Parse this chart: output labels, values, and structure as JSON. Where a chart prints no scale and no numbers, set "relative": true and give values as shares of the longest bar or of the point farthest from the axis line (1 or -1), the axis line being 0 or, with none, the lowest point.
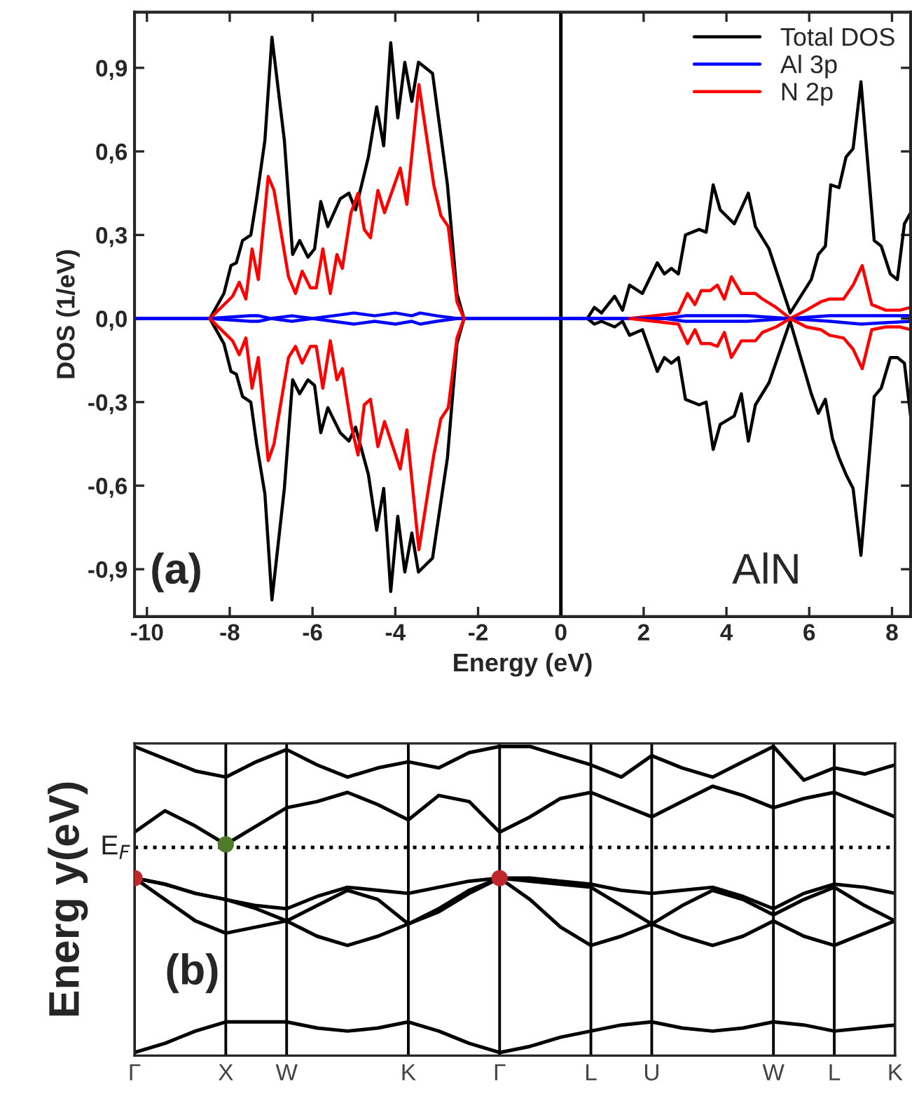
{
  "chart_data": [
    {
      "type": "line",
      "xlabel": "Energy (eV)",
      "ylabel": "DOS (1/eV)",
      "xlim": [
        -10.3,
        8.45
      ],
      "ylim": [
        -1.07,
        1.1
      ],
      "xticks": [
        -10,
        -8,
        -6,
        -4,
        -2,
        0,
        2,
        4,
        6,
        8
      ],
      "yticks": [
        {
          "value": -0.9,
          "label": "-0,9"
        },
        {
          "value": -0.6,
          "label": "-0,6"
        },
        {
          "value": -0.3,
          "label": "-0,3"
        },
        {
          "value": 0,
          "label": "0,0"
        },
        {
          "value": 0.3,
          "label": "0,3"
        },
        {
          "value": 0.6,
          "label": "0,6"
        },
        {
          "value": 0.9,
          "label": "0,9"
        }
      ],
      "legend": "top right",
      "annotations": [
        "(a)",
        "AlN"
      ],
      "ref_lines": [
        {
          "axis": "x",
          "value": 0,
          "color": "#000000",
          "line_style": "solid"
        }
      ],
      "series": [
        {
          "name": "Total DOS",
          "color": "#000000",
          "x": [
            -8.48,
            -8.14,
            -7.97,
            -7.84,
            -7.69,
            -7.49,
            -7.35,
            -7.15,
            -6.98,
            -6.68,
            -6.48,
            -6.31,
            -6.11,
            -5.95,
            -5.8,
            -5.63,
            -5.33,
            -5.12,
            -4.96,
            -4.65,
            -4.45,
            -4.28,
            -4.11,
            -3.94,
            -3.77,
            -3.6,
            -3.44,
            -3.1,
            -2.74,
            -2.51,
            -2.34,
            -1.0,
            0.3,
            0.64,
            0.81,
            0.98,
            1.3,
            1.49,
            1.66,
            1.97,
            2.33,
            2.5,
            2.67,
            2.84,
            3.01,
            3.34,
            3.51,
            3.68,
            3.85,
            4.19,
            4.53,
            4.7,
            5.03,
            5.54,
            6.05,
            6.22,
            6.39,
            6.52,
            6.72,
            6.89,
            7.06,
            7.25,
            7.57,
            7.74,
            7.96,
            8.13,
            8.3,
            8.45
          ],
          "values": [
            0,
            0.09,
            0.19,
            0.2,
            0.28,
            0.3,
            0.43,
            0.64,
            1.01,
            0.64,
            0.23,
            0.28,
            0.22,
            0.25,
            0.42,
            0.33,
            0.43,
            0.45,
            0.39,
            0.58,
            0.76,
            0.62,
            0.99,
            0.72,
            0.92,
            0.78,
            0.92,
            0.88,
            0.48,
            0.09,
            0,
            null,
            0,
            0,
            0.04,
            0.02,
            0.08,
            0.03,
            0.12,
            0.09,
            0.2,
            0.16,
            0.18,
            0.16,
            0.3,
            0.32,
            0.31,
            0.48,
            0.39,
            0.34,
            0.45,
            0.33,
            0.25,
            0.02,
            0.14,
            0.23,
            0.26,
            0.48,
            0.47,
            0.58,
            0.61,
            0.85,
            0.28,
            0.26,
            0.16,
            0.14,
            0.34,
            0.38
          ]
        },
        {
          "name": "Al 3p",
          "color": "#0000ff",
          "x": [
            -10.3,
            -8.5,
            -7.5,
            -7.3,
            -7.0,
            -6.5,
            -6.0,
            -5.5,
            -5.0,
            -4.5,
            -4.0,
            -3.6,
            -3.4,
            -3.0,
            -2.5,
            0,
            2.5,
            3.0,
            3.8,
            4.5,
            5.5,
            6.5,
            7.25,
            8.45
          ],
          "values": [
            0,
            0,
            0.01,
            0.01,
            0,
            0.01,
            0,
            0.01,
            0.02,
            0.01,
            0.02,
            0.01,
            0.02,
            0.01,
            0,
            0,
            0,
            0.01,
            0.01,
            0.01,
            0,
            0.01,
            0.01,
            0.01
          ]
        },
        {
          "name": "N 2p",
          "color": "#ff0000",
          "x": [
            -8.48,
            -7.93,
            -7.77,
            -7.61,
            -7.46,
            -7.31,
            -7.07,
            -6.93,
            -6.58,
            -6.41,
            -6.25,
            -6.05,
            -5.91,
            -5.75,
            -5.57,
            -5.41,
            -5.28,
            -5.07,
            -4.9,
            -4.75,
            -4.6,
            -4.42,
            -4.26,
            -3.88,
            -3.72,
            -3.43,
            -3.07,
            -2.9,
            -2.72,
            -2.51,
            -2.34,
            -1.0,
            1.66,
            2.84,
            3.06,
            3.24,
            3.39,
            3.61,
            3.78,
            3.95,
            4.12,
            4.36,
            4.7,
            4.87,
            5.2,
            5.54,
            5.93,
            6.28,
            6.49,
            6.83,
            7.06,
            7.28,
            7.51,
            7.85,
            8.19,
            8.45
          ],
          "values": [
            0,
            0.08,
            0.13,
            0.07,
            0.25,
            0.14,
            0.51,
            0.46,
            0.15,
            0.09,
            0.17,
            0.11,
            0.11,
            0.25,
            0.09,
            0.23,
            0.18,
            0.38,
            0.45,
            0.32,
            0.29,
            0.46,
            0.38,
            0.54,
            0.41,
            0.84,
            0.48,
            0.37,
            0.33,
            0.06,
            0,
            null,
            0,
            0.02,
            0.09,
            0.05,
            0.1,
            0.1,
            0.12,
            0.07,
            0.15,
            0.09,
            0.09,
            0.07,
            0.04,
            0,
            0.03,
            0.06,
            0.07,
            0.07,
            0.12,
            0.19,
            0.05,
            0.03,
            0.03,
            0.04
          ]
        },
        {
          "color": "#000000",
          "x": [
            -8.48,
            -8.14,
            -7.97,
            -7.84,
            -7.69,
            -7.49,
            -7.35,
            -7.15,
            -6.98,
            -6.68,
            -6.48,
            -6.31,
            -6.11,
            -5.95,
            -5.8,
            -5.63,
            -5.33,
            -5.12,
            -4.96,
            -4.65,
            -4.45,
            -4.28,
            -4.11,
            -3.94,
            -3.77,
            -3.6,
            -3.44,
            -3.1,
            -2.74,
            -2.51,
            -2.34,
            -1.0,
            0.64,
            0.81,
            0.98,
            1.3,
            1.49,
            1.66,
            1.97,
            2.33,
            2.5,
            2.67,
            2.84,
            3.01,
            3.34,
            3.51,
            3.68,
            3.85,
            4.19,
            4.36,
            4.53,
            4.7,
            5.03,
            5.54,
            6.05,
            6.22,
            6.39,
            6.56,
            6.72,
            6.89,
            7.06,
            7.25,
            7.57,
            7.74,
            7.96,
            8.13,
            8.3,
            8.45
          ],
          "values": [
            0,
            -0.09,
            -0.19,
            -0.2,
            -0.28,
            -0.3,
            -0.45,
            -0.63,
            -1.01,
            -0.61,
            -0.22,
            -0.27,
            -0.22,
            -0.24,
            -0.41,
            -0.32,
            -0.41,
            -0.44,
            -0.39,
            -0.56,
            -0.76,
            -0.61,
            -0.98,
            -0.71,
            -0.91,
            -0.77,
            -0.91,
            -0.86,
            -0.5,
            -0.09,
            0,
            null,
            0,
            -0.02,
            -0.01,
            -0.03,
            -0.01,
            -0.06,
            -0.04,
            -0.19,
            -0.14,
            -0.16,
            -0.14,
            -0.29,
            -0.31,
            -0.3,
            -0.47,
            -0.38,
            -0.35,
            -0.27,
            -0.44,
            -0.31,
            -0.23,
            -0.01,
            -0.27,
            -0.34,
            -0.29,
            -0.43,
            -0.5,
            -0.56,
            -0.61,
            -0.85,
            -0.28,
            -0.25,
            -0.14,
            -0.14,
            -0.16,
            -0.35
          ]
        },
        {
          "color": "#0000ff",
          "x": [
            -10.3,
            -8.5,
            -7.5,
            -7.3,
            -7.0,
            -6.5,
            -6.0,
            -5.5,
            -5.0,
            -4.5,
            -4.0,
            -3.6,
            -3.4,
            -3.0,
            -2.5,
            0,
            2.5,
            3.0,
            3.8,
            4.5,
            5.5,
            6.5,
            7.25,
            8.45
          ],
          "values": [
            0,
            0,
            -0.01,
            -0.01,
            0,
            -0.01,
            0,
            -0.01,
            -0.02,
            -0.01,
            -0.02,
            -0.01,
            -0.02,
            -0.01,
            0,
            0,
            0,
            -0.01,
            -0.01,
            -0.01,
            0,
            -0.01,
            -0.02,
            -0.01
          ]
        },
        {
          "color": "#ff0000",
          "x": [
            -8.48,
            -7.93,
            -7.77,
            -7.61,
            -7.46,
            -7.31,
            -7.07,
            -6.93,
            -6.58,
            -6.41,
            -6.25,
            -6.05,
            -5.91,
            -5.75,
            -5.57,
            -5.41,
            -5.28,
            -5.07,
            -4.9,
            -4.75,
            -4.6,
            -4.42,
            -4.26,
            -3.88,
            -3.72,
            -3.43,
            -3.07,
            -2.9,
            -2.72,
            -2.51,
            -2.34,
            -1.0,
            1.66,
            2.84,
            3.06,
            3.24,
            3.39,
            3.61,
            3.78,
            3.95,
            4.12,
            4.36,
            4.7,
            4.87,
            5.2,
            5.54,
            5.93,
            6.28,
            6.49,
            6.83,
            7.06,
            7.28,
            7.51,
            7.85,
            8.19,
            8.45
          ],
          "values": [
            0,
            -0.08,
            -0.13,
            -0.07,
            -0.25,
            -0.14,
            -0.51,
            -0.45,
            -0.14,
            -0.1,
            -0.16,
            -0.1,
            -0.1,
            -0.25,
            -0.08,
            -0.22,
            -0.18,
            -0.38,
            -0.49,
            -0.31,
            -0.29,
            -0.46,
            -0.37,
            -0.54,
            -0.4,
            -0.83,
            -0.49,
            -0.36,
            -0.32,
            -0.07,
            0,
            null,
            0,
            -0.02,
            -0.09,
            -0.04,
            -0.09,
            -0.09,
            -0.1,
            -0.05,
            -0.14,
            -0.08,
            -0.08,
            -0.05,
            -0.03,
            0,
            -0.03,
            -0.04,
            -0.06,
            -0.07,
            -0.11,
            -0.18,
            -0.04,
            -0.03,
            -0.03,
            -0.04
          ]
        }
      ]
    },
    {
      "type": "line",
      "relative": true,
      "ylabel": "Energ y(eV)",
      "grid": "x",
      "tick_labels": "x",
      "annotations": [
        "(b)"
      ],
      "categories": [
        "Γ",
        null,
        null,
        "X",
        null,
        "W",
        null,
        null,
        null,
        "K",
        null,
        null,
        "Γ",
        null,
        null,
        "L",
        null,
        "U",
        null,
        null,
        null,
        "W",
        null,
        "L",
        null,
        "K"
      ],
      "ref_lines": [
        {
          "axis": "y",
          "value": 0.67,
          "label": "E$_{F}$",
          "color": "#000000",
          "line_style": "dotted"
        }
      ],
      "series": [
        {
          "color": "#000000",
          "values": [
            0,
            0.03,
            0.07,
            0.1,
            0.1,
            0.1,
            0.08,
            0.07,
            0.08,
            0.1,
            0.07,
            0.03,
            0,
            0.02,
            0.05,
            0.07,
            0.09,
            0.1,
            0.08,
            0.07,
            0.08,
            0.1,
            0.09,
            0.07,
            0.08,
            0.09
          ]
        },
        {
          "color": "#000000",
          "values": [
            0.57,
            0.55,
            0.52,
            0.5,
            0.48,
            0.47,
            0.51,
            0.54,
            0.53,
            0.52,
            0.54,
            0.56,
            0.57,
            0.57,
            0.56,
            0.55,
            0.53,
            0.52,
            0.53,
            0.54,
            0.51,
            0.47,
            0.52,
            0.55,
            0.54,
            0.52
          ]
        },
        {
          "color": "#000000",
          "values": [
            0.57,
            0.5,
            0.43,
            0.39,
            0.41,
            0.43,
            0.38,
            0.35,
            0.38,
            0.42,
            0.46,
            0.52,
            0.57,
            0.5,
            0.41,
            0.35,
            0.38,
            0.42,
            0.38,
            0.35,
            0.38,
            0.43,
            0.38,
            0.35,
            0.39,
            0.43
          ]
        },
        {
          "color": "#000000",
          "values": [
            0.57,
            0.55,
            0.52,
            0.5,
            0.47,
            0.43,
            0.48,
            0.53,
            0.5,
            0.42,
            0.47,
            0.53,
            0.57,
            0.56,
            0.55,
            0.54,
            0.48,
            0.42,
            0.48,
            0.53,
            0.5,
            0.45,
            0.5,
            0.54,
            0.48,
            0.43
          ]
        },
        {
          "color": "#000000",
          "values": [
            0.72,
            0.79,
            0.74,
            0.68,
            0.74,
            0.8,
            0.82,
            0.85,
            0.81,
            0.76,
            0.84,
            0.82,
            0.72,
            0.77,
            0.83,
            0.85,
            0.81,
            0.77,
            0.82,
            0.87,
            0.84,
            0.8,
            0.83,
            0.85,
            0.81,
            0.77
          ]
        },
        {
          "color": "#000000",
          "values": [
            1.0,
            0.96,
            0.92,
            0.9,
            0.95,
            0.99,
            0.94,
            0.9,
            0.93,
            0.95,
            0.93,
            0.98,
            1.0,
            1.0,
            0.97,
            0.94,
            0.9,
            0.97,
            0.93,
            0.9,
            0.95,
            1.0,
            0.89,
            0.93,
            0.91,
            0.94
          ]
        },
        {
          "type": "scatter",
          "marker": "circle",
          "color": "#c0272d",
          "values": [
            0.57,
            null,
            null,
            null,
            null,
            null,
            null,
            null,
            null,
            null,
            null,
            null,
            0.57,
            null,
            null,
            null,
            null,
            null,
            null,
            null,
            null,
            null,
            null,
            null,
            null,
            null
          ]
        },
        {
          "type": "scatter",
          "marker": "circle",
          "color": "#4f7a28",
          "values": [
            null,
            null,
            null,
            0.68,
            null,
            null,
            null,
            null,
            null,
            null,
            null,
            null,
            null,
            null,
            null,
            null,
            null,
            null,
            null,
            null,
            null,
            null,
            null,
            null,
            null,
            null
          ]
        }
      ]
    }
  ]
}
